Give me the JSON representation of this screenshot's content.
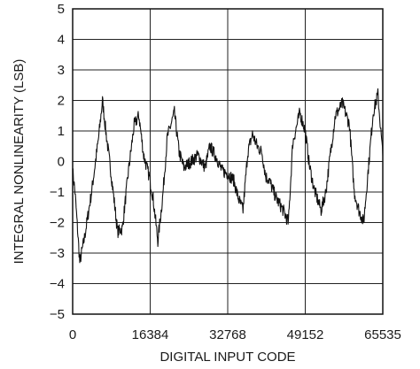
{
  "chart_data": {
    "type": "line",
    "title": "",
    "xlabel": "DIGITAL INPUT CODE",
    "ylabel": "INTEGRAL NONLINEARITY (LSB)",
    "xlim": [
      0,
      65535
    ],
    "ylim": [
      -5,
      5
    ],
    "x_ticks": [
      0,
      16384,
      32768,
      49152,
      65535
    ],
    "x_tick_labels": [
      "0",
      "16384",
      "32768",
      "49152",
      "65535"
    ],
    "y_ticks": [
      5,
      4,
      3,
      2,
      1,
      0,
      -1,
      -2,
      -3,
      -4,
      -5
    ],
    "y_tick_labels": [
      "5",
      "4",
      "3",
      "2",
      "1",
      "0",
      "−1",
      "−2",
      "−3",
      "−4",
      "−5"
    ],
    "grid": true,
    "line_color": "#111111",
    "series": [
      {
        "x": [
          0,
          500,
          1500,
          2500,
          4000,
          5500,
          6300,
          7000,
          8200,
          9500,
          10500,
          11800,
          13000,
          14000,
          15000,
          16200,
          17000,
          18000,
          19000,
          20000,
          21500,
          22500,
          23500,
          25000,
          26500,
          28000,
          29000,
          30500,
          31500,
          32768,
          34000,
          35000,
          36000,
          37000,
          38000,
          39000,
          40000,
          40800,
          41500,
          43000,
          44500,
          45600,
          46500,
          48000,
          49152,
          50000,
          51000,
          52500,
          53500,
          54500,
          55500,
          57000,
          58500,
          59500,
          60500,
          61500,
          62500,
          63500,
          64500,
          65535
        ],
        "y": [
          -0.3,
          -1.0,
          -3.3,
          -2.5,
          -1.0,
          0.8,
          2.0,
          1.0,
          -0.5,
          -2.3,
          -2.2,
          -0.3,
          1.2,
          1.5,
          0.2,
          -0.5,
          -1.2,
          -2.6,
          -1.2,
          0.8,
          1.6,
          0.3,
          -0.2,
          0.0,
          0.2,
          -0.2,
          0.5,
          0.1,
          -0.3,
          -0.4,
          -0.6,
          -1.2,
          -1.6,
          0.3,
          0.9,
          0.5,
          0.3,
          -0.5,
          -0.6,
          -1.2,
          -1.6,
          -2.0,
          0.6,
          1.6,
          1.0,
          -0.1,
          -0.9,
          -1.6,
          -1.0,
          0.3,
          1.5,
          1.9,
          1.2,
          -1.0,
          -1.6,
          -2.0,
          -0.2,
          1.6,
          2.2,
          0.2
        ]
      }
    ]
  }
}
